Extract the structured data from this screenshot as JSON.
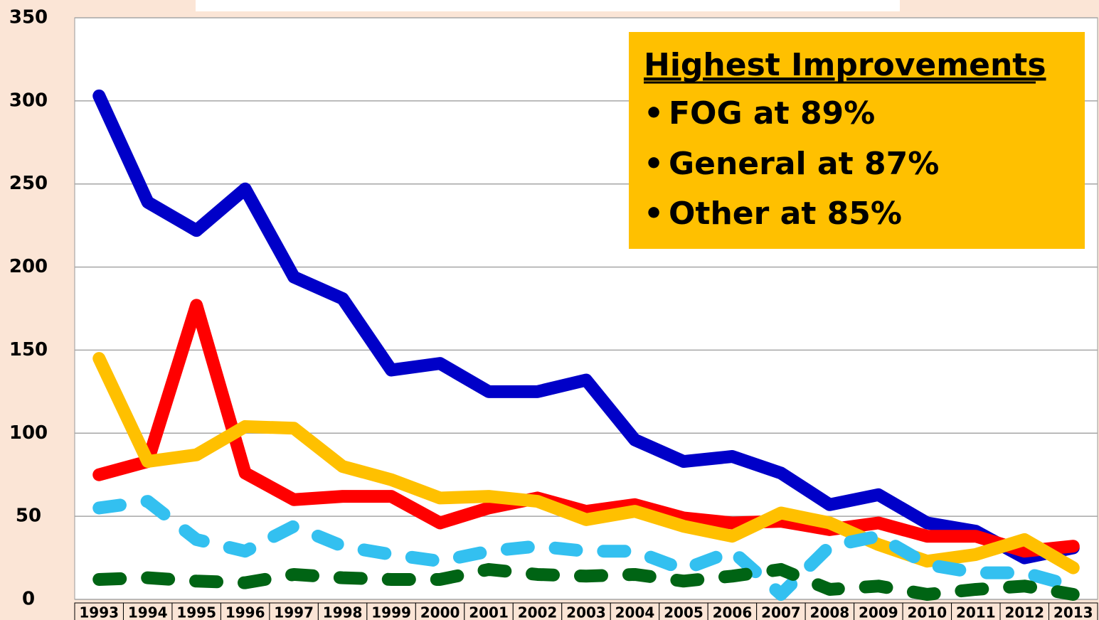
{
  "chart_data": {
    "type": "line",
    "categories": [
      "1993",
      "1994",
      "1995",
      "1996",
      "1997",
      "1998",
      "1999",
      "2000",
      "2001",
      "2002",
      "2003",
      "2004",
      "2005",
      "2006",
      "2007",
      "2008",
      "2009",
      "2010",
      "2011",
      "2012",
      "2013"
    ],
    "series": [
      {
        "color": "#0000c8",
        "dashed": false,
        "values": [
          303,
          239,
          222,
          247,
          194,
          181,
          138,
          142,
          125,
          125,
          132,
          96,
          83,
          86,
          76,
          57,
          63,
          46,
          41,
          25,
          31
        ]
      },
      {
        "color": "#ff0000",
        "dashed": false,
        "values": [
          75,
          83,
          177,
          76,
          60,
          62,
          62,
          46,
          55,
          61,
          53,
          57,
          49,
          46,
          47,
          42,
          46,
          38,
          38,
          29,
          32
        ]
      },
      {
        "color": "#ffc000",
        "dashed": false,
        "values": [
          145,
          83,
          87,
          104,
          103,
          80,
          72,
          61,
          62,
          59,
          48,
          53,
          44,
          38,
          52,
          46,
          33,
          23,
          27,
          36,
          19
        ]
      },
      {
        "color": "#33c0f0",
        "dashed": true,
        "values": [
          55,
          59,
          36,
          29,
          44,
          32,
          27,
          23,
          29,
          32,
          29,
          29,
          18,
          29,
          3,
          32,
          38,
          21,
          16,
          16,
          8
        ]
      },
      {
        "color": "#006414",
        "dashed": true,
        "values": [
          12,
          13,
          11,
          10,
          15,
          13,
          12,
          12,
          18,
          15,
          14,
          15,
          11,
          14,
          18,
          6,
          8,
          3,
          6,
          8,
          3
        ]
      }
    ],
    "ylim": [
      0,
      350
    ],
    "yticks": [
      0,
      50,
      100,
      150,
      200,
      250,
      300,
      350
    ],
    "grid": true,
    "annotation": {
      "title": "Highest Improvements",
      "items": [
        "FOG at 89%",
        "General at 87%",
        "Other at 85%"
      ]
    }
  }
}
